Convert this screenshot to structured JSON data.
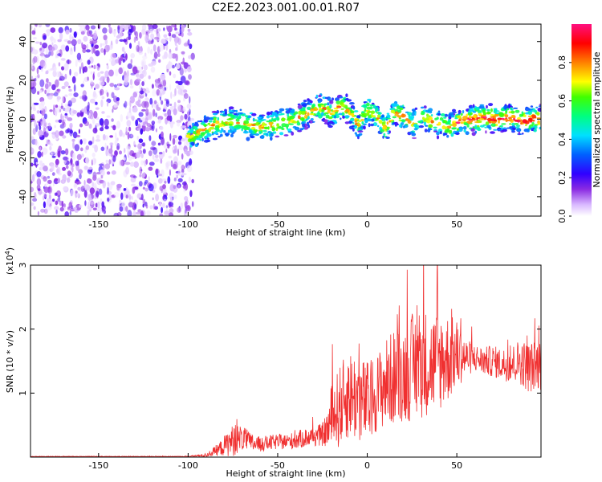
{
  "title": "C2E2.2023.001.00.01.R07",
  "chart_data": [
    {
      "type": "heatmap",
      "xlabel": "Height of straight line (km)",
      "ylabel": "Frequency (Hz)",
      "xlim": [
        -188,
        97
      ],
      "ylim": [
        -50,
        49
      ],
      "x_ticks": [
        -150,
        -100,
        -50,
        0,
        50
      ],
      "y_ticks": [
        -40,
        -20,
        0,
        20,
        40
      ],
      "colorbar": {
        "label": "Normalized spectral amplitude",
        "range": [
          0,
          1
        ],
        "ticks": [
          "0.0",
          "0.2",
          "0.4",
          "0.6",
          "0.8"
        ]
      },
      "noise_region_x": [
        -188,
        -100
      ],
      "signal_track": {
        "x": [
          -100,
          -90,
          -80,
          -70,
          -60,
          -50,
          -40,
          -30,
          -25,
          -20,
          -15,
          -10,
          -5,
          0,
          5,
          10,
          15,
          20,
          25,
          30,
          35,
          40,
          45,
          50,
          55,
          60,
          65,
          70,
          75,
          80,
          85,
          90,
          97
        ],
        "freq": [
          -10,
          -5,
          -1,
          -2,
          -4,
          -3,
          0,
          5,
          6,
          3,
          7,
          4,
          -3,
          5,
          2,
          -5,
          3,
          2,
          -3,
          2,
          -1,
          -2,
          -4,
          -2,
          0,
          0,
          1,
          0,
          0,
          1,
          -1,
          0,
          0
        ]
      }
    },
    {
      "type": "line",
      "xlabel": "Height of straight line (km)",
      "ylabel": "SNR (10 * v/v)",
      "y_exponent": "(x10",
      "y_exponent_power": "4",
      "y_exponent_close": ")",
      "xlim": [
        -188,
        97
      ],
      "ylim": [
        0,
        3
      ],
      "x_ticks": [
        -150,
        -100,
        -50,
        0,
        50
      ],
      "y_ticks": [
        1,
        2,
        3
      ],
      "color": "#f03030",
      "envelope": {
        "x": [
          -188,
          -100,
          -90,
          -83,
          -75,
          -70,
          -65,
          -60,
          -55,
          -50,
          -45,
          -40,
          -35,
          -30,
          -25,
          -22,
          -20,
          -15,
          -10,
          -5,
          0,
          5,
          10,
          15,
          20,
          25,
          30,
          35,
          40,
          45,
          50,
          55,
          60,
          65,
          70,
          75,
          80,
          85,
          90,
          97
        ],
        "mean": [
          0.01,
          0.01,
          0.03,
          0.12,
          0.26,
          0.3,
          0.22,
          0.2,
          0.22,
          0.24,
          0.24,
          0.26,
          0.3,
          0.32,
          0.35,
          0.45,
          0.6,
          0.8,
          1.0,
          0.9,
          0.85,
          1.0,
          1.15,
          1.25,
          1.3,
          1.4,
          1.5,
          1.45,
          1.5,
          1.55,
          1.6,
          1.55,
          1.55,
          1.5,
          1.5,
          1.45,
          1.45,
          1.5,
          1.4,
          1.45
        ],
        "spread": [
          0.005,
          0.005,
          0.03,
          0.1,
          0.25,
          0.2,
          0.15,
          0.12,
          0.12,
          0.12,
          0.12,
          0.14,
          0.15,
          0.15,
          0.18,
          0.3,
          0.55,
          0.65,
          0.7,
          0.7,
          0.65,
          0.6,
          0.7,
          0.75,
          0.75,
          0.85,
          0.9,
          0.8,
          0.8,
          0.7,
          0.55,
          0.3,
          0.22,
          0.22,
          0.25,
          0.25,
          0.28,
          0.35,
          0.4,
          0.4
        ]
      }
    }
  ]
}
